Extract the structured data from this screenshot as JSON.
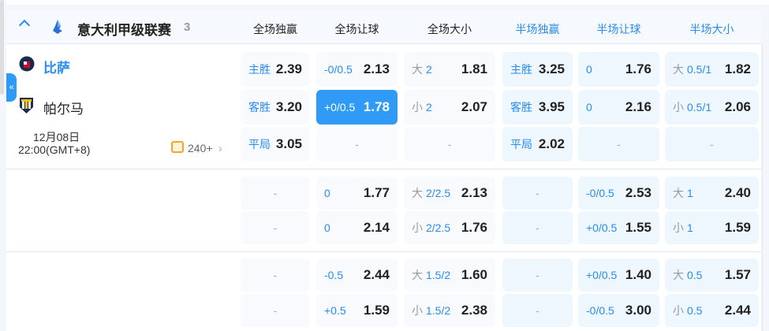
{
  "league": {
    "name": "意大利甲级联赛",
    "count": "3"
  },
  "columns": [
    "全场独赢",
    "全场让球",
    "全场大小",
    "半场独赢",
    "半场让球",
    "半场大小"
  ],
  "colors": {
    "accent": "#2f9bf7",
    "half_header": "#2a8cf0"
  },
  "match": {
    "home": "比萨",
    "away": "帕尔马",
    "date": "12月08日",
    "time": "22:00(GMT+8)",
    "more": "240+"
  },
  "groups": [
    {
      "rows": [
        [
          {
            "line": "主胜",
            "odds": "2.39"
          },
          {
            "line": "-0/0.5",
            "odds": "2.13"
          },
          {
            "ou": "大",
            "line": "2",
            "odds": "1.81"
          },
          {
            "line": "主胜",
            "odds": "3.25"
          },
          {
            "line": "0",
            "odds": "1.76"
          },
          {
            "ou": "大",
            "line": "0.5/1",
            "odds": "1.82"
          }
        ],
        [
          {
            "line": "客胜",
            "odds": "3.20"
          },
          {
            "line": "+0/0.5",
            "odds": "1.78",
            "selected": true
          },
          {
            "ou": "小",
            "line": "2",
            "odds": "2.07"
          },
          {
            "line": "客胜",
            "odds": "3.95"
          },
          {
            "line": "0",
            "odds": "2.16"
          },
          {
            "ou": "小",
            "line": "0.5/1",
            "odds": "2.06"
          }
        ],
        [
          {
            "line": "平局",
            "odds": "3.05"
          },
          {
            "dash": "-"
          },
          {
            "dash": "-"
          },
          {
            "line": "平局",
            "odds": "2.02"
          },
          {
            "dash": "-"
          },
          {
            "dash": "-"
          }
        ]
      ]
    },
    {
      "rows": [
        [
          {
            "dash": "-"
          },
          {
            "line": "0",
            "odds": "1.77"
          },
          {
            "ou": "大",
            "line": "2/2.5",
            "odds": "2.13"
          },
          {
            "dash": "-"
          },
          {
            "line": "-0/0.5",
            "odds": "2.53"
          },
          {
            "ou": "大",
            "line": "1",
            "odds": "2.40"
          }
        ],
        [
          {
            "dash": "-"
          },
          {
            "line": "0",
            "odds": "2.14"
          },
          {
            "ou": "小",
            "line": "2/2.5",
            "odds": "1.76"
          },
          {
            "dash": "-"
          },
          {
            "line": "+0/0.5",
            "odds": "1.55"
          },
          {
            "ou": "小",
            "line": "1",
            "odds": "1.59"
          }
        ]
      ]
    },
    {
      "rows": [
        [
          {
            "dash": "-"
          },
          {
            "line": "-0.5",
            "odds": "2.44"
          },
          {
            "ou": "大",
            "line": "1.5/2",
            "odds": "1.60"
          },
          {
            "dash": "-"
          },
          {
            "line": "+0/0.5",
            "odds": "1.40"
          },
          {
            "ou": "大",
            "line": "0.5",
            "odds": "1.57"
          }
        ],
        [
          {
            "dash": "-"
          },
          {
            "line": "+0.5",
            "odds": "1.59"
          },
          {
            "ou": "小",
            "line": "1.5/2",
            "odds": "2.38"
          },
          {
            "dash": "-"
          },
          {
            "line": "-0/0.5",
            "odds": "3.00"
          },
          {
            "ou": "小",
            "line": "0.5",
            "odds": "2.44"
          }
        ]
      ]
    }
  ]
}
